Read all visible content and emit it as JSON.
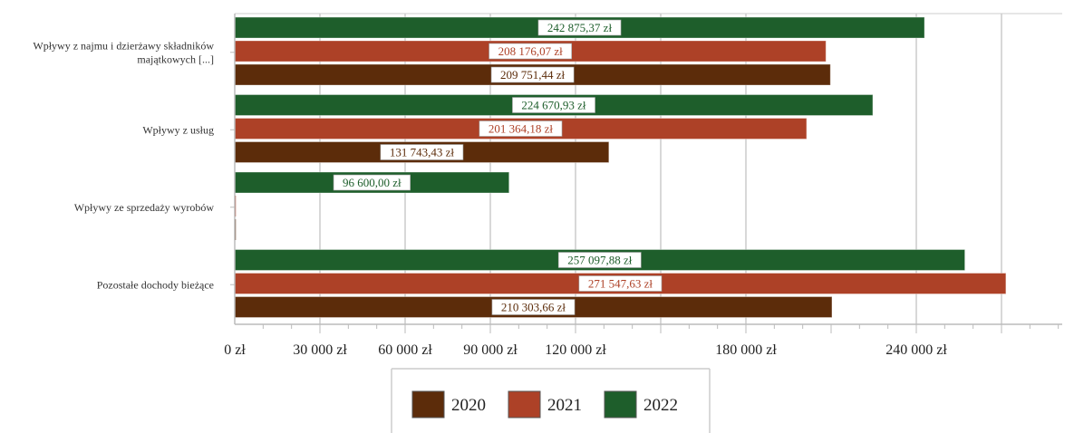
{
  "chart_data": {
    "type": "bar",
    "orientation": "horizontal",
    "categories": [
      [
        "Wpływy z najmu i dzierżawy składników",
        "majątkowych [...]"
      ],
      [
        "Wpływy z usług"
      ],
      [
        "Wpływy ze sprzedaży wyrobów"
      ],
      [
        "Pozostałe dochody bieżące"
      ]
    ],
    "series": [
      {
        "name": "2022",
        "color": "#1e5e2b",
        "values": [
          242875.37,
          224670.93,
          96600.0,
          257097.88
        ],
        "labels": [
          "242 875,37 zł",
          "224 670,93 zł",
          "96 600,00 zł",
          "257 097,88 zł"
        ]
      },
      {
        "name": "2021",
        "color": "#ad4127",
        "values": [
          208176.07,
          201364.18,
          0,
          271547.63
        ],
        "labels": [
          "208 176,07 zł",
          "201 364,18 zł",
          "",
          "271 547,63 zł"
        ]
      },
      {
        "name": "2020",
        "color": "#5c2c0a",
        "values": [
          209751.44,
          131743.43,
          0,
          210303.66
        ],
        "labels": [
          "209 751,44 zł",
          "131 743,43 zł",
          "",
          "210 303,66 zł"
        ]
      }
    ],
    "x_ticks": [
      {
        "value": 0,
        "label": "0 zł"
      },
      {
        "value": 30000,
        "label": "30 000 zł"
      },
      {
        "value": 60000,
        "label": "60 000 zł"
      },
      {
        "value": 90000,
        "label": "90 000 zł"
      },
      {
        "value": 120000,
        "label": "120 000 zł"
      },
      {
        "value": 180000,
        "label": "180 000 zł"
      },
      {
        "value": 240000,
        "label": "240 000 zł"
      }
    ],
    "xlim": [
      0,
      290000
    ],
    "grid": true,
    "legend": {
      "placement": "bottom",
      "items": [
        {
          "name": "2020",
          "color": "#5c2c0a"
        },
        {
          "name": "2021",
          "color": "#ad4127"
        },
        {
          "name": "2022",
          "color": "#1e5e2b"
        }
      ]
    }
  }
}
